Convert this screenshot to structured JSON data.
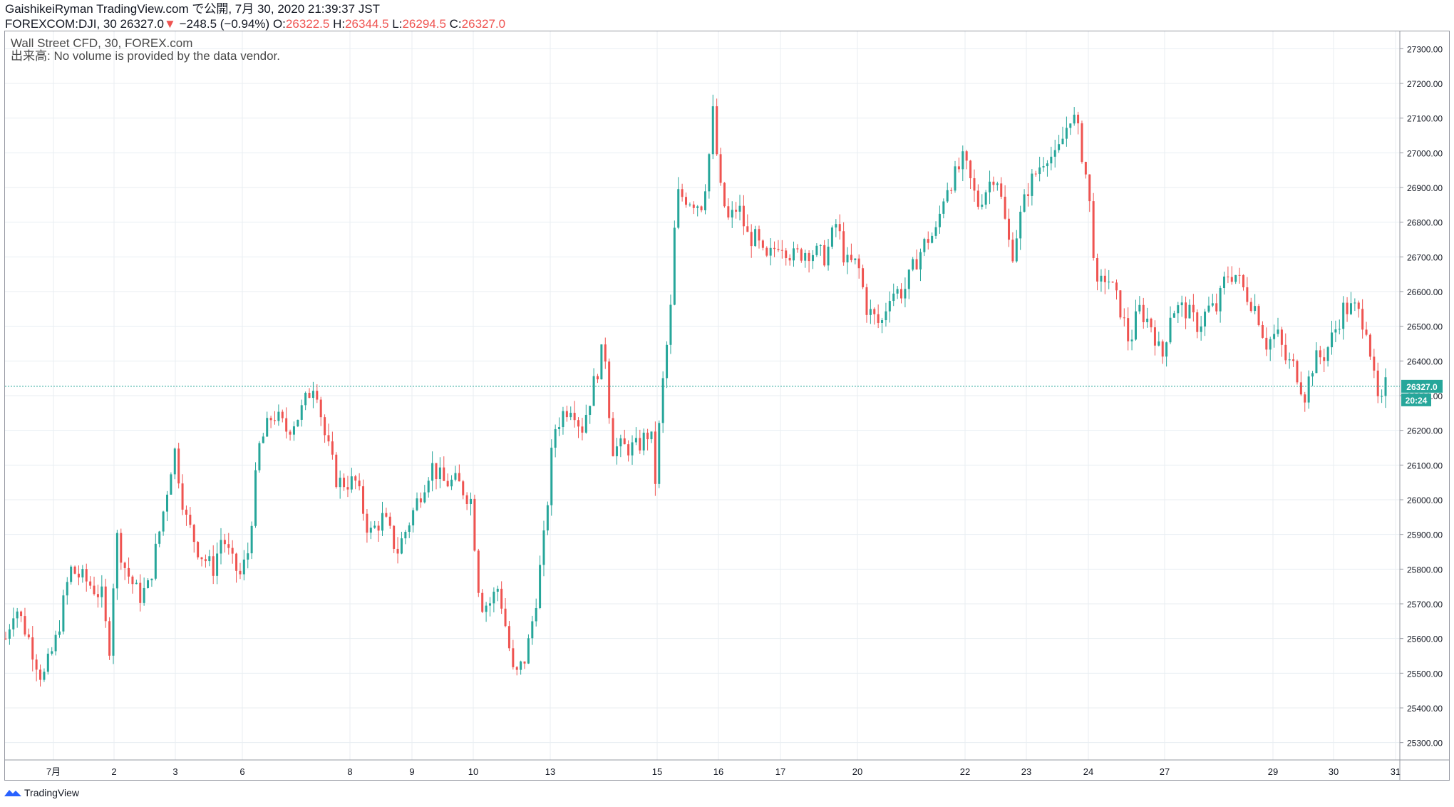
{
  "header": {
    "line1": "GaishikeiRyman TradingView.com で公開, 7月 30, 2020 21:39:37 JST",
    "symbol": "FOREXCOM:DJI, 30",
    "last": "26327.0",
    "arrow": "▼",
    "change": "−248.5 (−0.94%)",
    "o_label": "O:",
    "o_value": "26322.5",
    "h_label": "H:",
    "h_value": "26344.5",
    "l_label": "L:",
    "l_value": "26294.5",
    "c_label": "C:",
    "c_value": "26327.0"
  },
  "legend": {
    "title": "Wall Street CFD, 30, FOREX.com",
    "volume_note": "出来高: No volume is provided by the data vendor."
  },
  "price_tag": {
    "value": "26327.0",
    "countdown": "20:24"
  },
  "footer": {
    "brand": "TradingView"
  },
  "colors": {
    "up": "#26a69a",
    "down": "#ef5350",
    "grid": "#e8eef2",
    "price_line": "#26a69a"
  },
  "chart_data": {
    "type": "candlestick",
    "ylim": [
      25250,
      27350
    ],
    "y_ticks": [
      25300,
      25400,
      25500,
      25600,
      25700,
      25800,
      25900,
      26000,
      26100,
      26200,
      26300,
      26400,
      26500,
      26600,
      26700,
      26800,
      26900,
      27000,
      27100,
      27200,
      27300
    ],
    "x_ticks": [
      "7月",
      "2",
      "3",
      "6",
      "8",
      "9",
      "10",
      "13",
      "15",
      "16",
      "17",
      "20",
      "22",
      "23",
      "24",
      "27",
      "29",
      "30",
      "31"
    ],
    "current_price": 26327.0,
    "path": [
      [
        0,
        25600
      ],
      [
        10,
        25700
      ],
      [
        25,
        25600
      ],
      [
        40,
        25480
      ],
      [
        55,
        25600
      ],
      [
        70,
        25800
      ],
      [
        90,
        25760
      ],
      [
        105,
        25720
      ],
      [
        112,
        25550
      ],
      [
        120,
        25900
      ],
      [
        130,
        25800
      ],
      [
        145,
        25720
      ],
      [
        155,
        25750
      ],
      [
        170,
        25950
      ],
      [
        183,
        26150
      ],
      [
        195,
        25950
      ],
      [
        210,
        25850
      ],
      [
        225,
        25800
      ],
      [
        235,
        25900
      ],
      [
        245,
        25820
      ],
      [
        255,
        25780
      ],
      [
        263,
        25850
      ],
      [
        275,
        26150
      ],
      [
        290,
        26250
      ],
      [
        305,
        26200
      ],
      [
        320,
        26250
      ],
      [
        336,
        26350
      ],
      [
        345,
        26200
      ],
      [
        360,
        26050
      ],
      [
        380,
        26050
      ],
      [
        395,
        25900
      ],
      [
        410,
        25950
      ],
      [
        425,
        25850
      ],
      [
        440,
        25950
      ],
      [
        462,
        26100
      ],
      [
        475,
        26050
      ],
      [
        490,
        26050
      ],
      [
        505,
        26000
      ],
      [
        515,
        25700
      ],
      [
        525,
        25700
      ],
      [
        535,
        25750
      ],
      [
        545,
        25600
      ],
      [
        552,
        25480
      ],
      [
        565,
        25550
      ],
      [
        575,
        25700
      ],
      [
        585,
        25900
      ],
      [
        595,
        26200
      ],
      [
        605,
        26250
      ],
      [
        615,
        26280
      ],
      [
        625,
        26200
      ],
      [
        640,
        26350
      ],
      [
        650,
        26450
      ],
      [
        658,
        26150
      ],
      [
        670,
        26150
      ],
      [
        685,
        26150
      ],
      [
        700,
        26200
      ],
      [
        705,
        26050
      ],
      [
        712,
        26300
      ],
      [
        722,
        26550
      ],
      [
        728,
        26880
      ],
      [
        740,
        26870
      ],
      [
        755,
        26850
      ],
      [
        762,
        26950
      ],
      [
        768,
        27120
      ],
      [
        775,
        26900
      ],
      [
        785,
        26800
      ],
      [
        795,
        26850
      ],
      [
        805,
        26760
      ],
      [
        815,
        26750
      ],
      [
        825,
        26680
      ],
      [
        840,
        26750
      ],
      [
        855,
        26700
      ],
      [
        870,
        26720
      ],
      [
        890,
        26700
      ],
      [
        902,
        26800
      ],
      [
        912,
        26680
      ],
      [
        925,
        26680
      ],
      [
        935,
        26550
      ],
      [
        950,
        26500
      ],
      [
        960,
        26600
      ],
      [
        975,
        26600
      ],
      [
        990,
        26700
      ],
      [
        1000,
        26750
      ],
      [
        1010,
        26770
      ],
      [
        1020,
        26900
      ],
      [
        1030,
        26930
      ],
      [
        1040,
        26980
      ],
      [
        1055,
        26850
      ],
      [
        1065,
        26900
      ],
      [
        1075,
        26950
      ],
      [
        1085,
        26800
      ],
      [
        1092,
        26700
      ],
      [
        1100,
        26800
      ],
      [
        1110,
        26900
      ],
      [
        1120,
        26950
      ],
      [
        1130,
        27000
      ],
      [
        1140,
        26980
      ],
      [
        1150,
        27060
      ],
      [
        1157,
        27120
      ],
      [
        1165,
        27050
      ],
      [
        1175,
        26900
      ],
      [
        1185,
        26600
      ],
      [
        1195,
        26650
      ],
      [
        1210,
        26550
      ],
      [
        1220,
        26450
      ],
      [
        1230,
        26550
      ],
      [
        1245,
        26500
      ],
      [
        1255,
        26400
      ],
      [
        1265,
        26550
      ],
      [
        1280,
        26550
      ],
      [
        1295,
        26500
      ],
      [
        1305,
        26550
      ],
      [
        1315,
        26550
      ],
      [
        1325,
        26650
      ],
      [
        1335,
        26650
      ],
      [
        1345,
        26600
      ],
      [
        1358,
        26550
      ],
      [
        1368,
        26450
      ],
      [
        1380,
        26480
      ],
      [
        1390,
        26400
      ],
      [
        1400,
        26380
      ],
      [
        1410,
        26300
      ],
      [
        1420,
        26400
      ],
      [
        1432,
        26420
      ],
      [
        1442,
        26480
      ],
      [
        1452,
        26550
      ],
      [
        1465,
        26550
      ],
      [
        1478,
        26500
      ],
      [
        1485,
        26350
      ],
      [
        1492,
        26250
      ],
      [
        1498,
        26327
      ]
    ]
  }
}
